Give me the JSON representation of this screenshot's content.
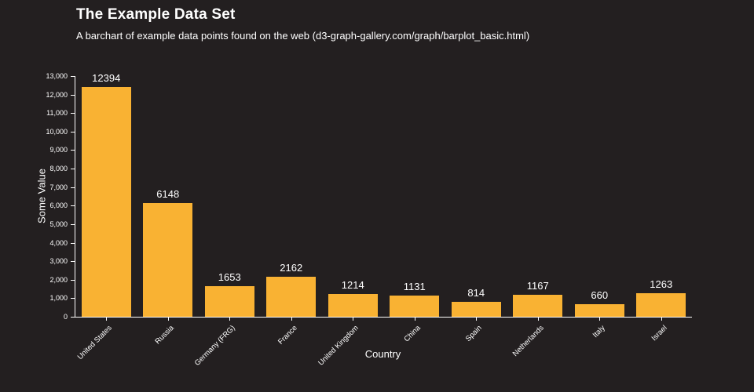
{
  "page": {
    "background_color": "#231f20",
    "text_color": "#ffffff",
    "axis_color": "#ffffff"
  },
  "header": {
    "title": "The Example Data Set",
    "subtitle": "A barchart of example data points found on the web (d3-graph-gallery.com/graph/barplot_basic.html)"
  },
  "chart_data": {
    "type": "bar",
    "categories": [
      "United States",
      "Russia",
      "Germany (FRG)",
      "France",
      "United Kingdom",
      "China",
      "Spain",
      "Netherlands",
      "Italy",
      "Israel"
    ],
    "values": [
      12394,
      6148,
      1653,
      2162,
      1214,
      1131,
      814,
      1167,
      660,
      1263
    ],
    "value_labels": [
      "12394",
      "6148",
      "1653",
      "2162",
      "1214",
      "1131",
      "814",
      "1167",
      "660",
      "1263"
    ],
    "title": "The Example Data Set",
    "xlabel": "Country",
    "ylabel": "Some Value",
    "ylim": [
      0,
      13000
    ],
    "y_tick_step": 1000,
    "y_tick_labels": [
      "0",
      "1,000",
      "2,000",
      "3,000",
      "4,000",
      "5,000",
      "6,000",
      "7,000",
      "8,000",
      "9,000",
      "10,000",
      "11,000",
      "12,000",
      "13,000"
    ],
    "bar_color": "#f9b233",
    "grid": false,
    "legend": false,
    "x_tick_rotation": -45
  }
}
